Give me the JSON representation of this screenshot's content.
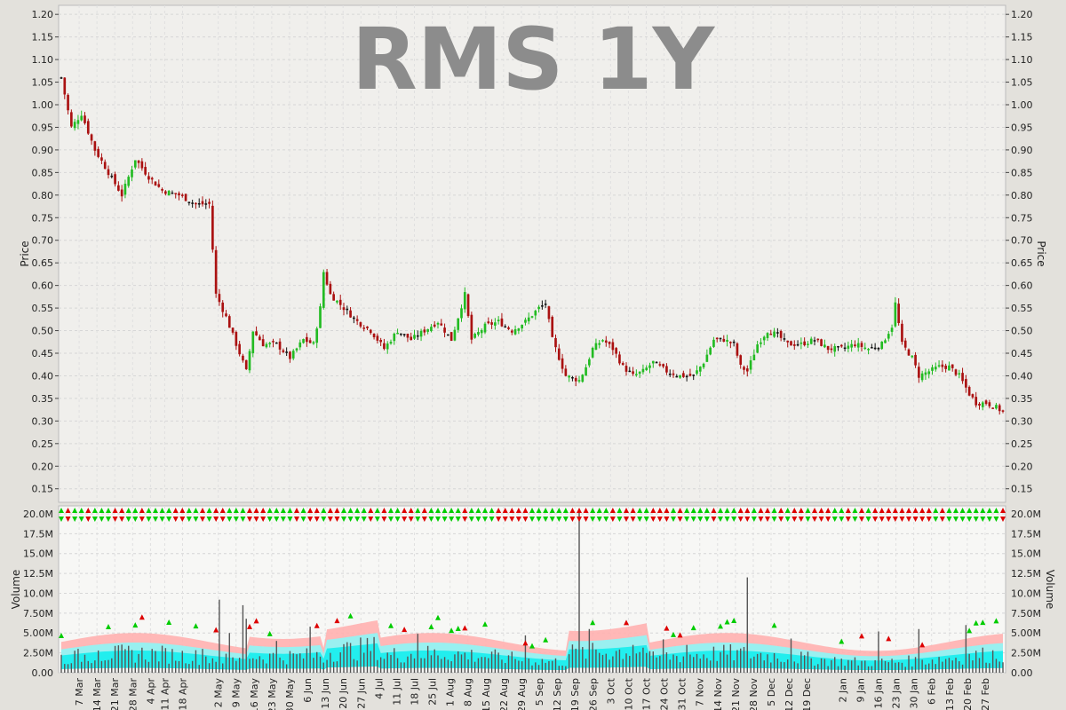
{
  "chart_data": [
    {
      "type": "candlestick",
      "title": "RMS 1Y",
      "ylabel": "Price",
      "ylim": [
        0.12,
        1.22
      ],
      "yticks": [
        "0.15",
        "0.20",
        "0.25",
        "0.30",
        "0.35",
        "0.40",
        "0.45",
        "0.50",
        "0.55",
        "0.60",
        "0.65",
        "0.70",
        "0.75",
        "0.80",
        "0.85",
        "0.90",
        "0.95",
        "1.00",
        "1.05",
        "1.10",
        "1.15",
        "1.20"
      ],
      "grid": true,
      "colors": {
        "up": "#22bb22",
        "down": "#aa1111",
        "neutral": "#111111",
        "background": "#f0efec"
      },
      "approx_close_path": [
        [
          0,
          1.06
        ],
        [
          3,
          0.95
        ],
        [
          6,
          0.98
        ],
        [
          10,
          0.9
        ],
        [
          14,
          0.85
        ],
        [
          18,
          0.8
        ],
        [
          22,
          0.88
        ],
        [
          26,
          0.84
        ],
        [
          30,
          0.81
        ],
        [
          35,
          0.8
        ],
        [
          40,
          0.78
        ],
        [
          44,
          0.78
        ],
        [
          46,
          0.58
        ],
        [
          49,
          0.53
        ],
        [
          53,
          0.45
        ],
        [
          55,
          0.41
        ],
        [
          57,
          0.5
        ],
        [
          60,
          0.47
        ],
        [
          64,
          0.47
        ],
        [
          68,
          0.44
        ],
        [
          72,
          0.48
        ],
        [
          75,
          0.47
        ],
        [
          77,
          0.55
        ],
        [
          78,
          0.63
        ],
        [
          80,
          0.58
        ],
        [
          84,
          0.55
        ],
        [
          88,
          0.52
        ],
        [
          92,
          0.5
        ],
        [
          96,
          0.46
        ],
        [
          100,
          0.5
        ],
        [
          104,
          0.48
        ],
        [
          108,
          0.5
        ],
        [
          112,
          0.52
        ],
        [
          116,
          0.48
        ],
        [
          118,
          0.53
        ],
        [
          120,
          0.58
        ],
        [
          122,
          0.48
        ],
        [
          126,
          0.51
        ],
        [
          130,
          0.52
        ],
        [
          134,
          0.5
        ],
        [
          138,
          0.52
        ],
        [
          142,
          0.55
        ],
        [
          144,
          0.56
        ],
        [
          146,
          0.48
        ],
        [
          148,
          0.44
        ],
        [
          150,
          0.4
        ],
        [
          154,
          0.39
        ],
        [
          156,
          0.42
        ],
        [
          158,
          0.46
        ],
        [
          161,
          0.48
        ],
        [
          164,
          0.46
        ],
        [
          167,
          0.42
        ],
        [
          170,
          0.4
        ],
        [
          173,
          0.41
        ],
        [
          176,
          0.43
        ],
        [
          180,
          0.41
        ],
        [
          184,
          0.4
        ],
        [
          188,
          0.4
        ],
        [
          191,
          0.43
        ],
        [
          194,
          0.48
        ],
        [
          197,
          0.48
        ],
        [
          200,
          0.47
        ],
        [
          202,
          0.42
        ],
        [
          204,
          0.41
        ],
        [
          207,
          0.47
        ],
        [
          210,
          0.5
        ],
        [
          213,
          0.49
        ],
        [
          216,
          0.47
        ],
        [
          220,
          0.47
        ],
        [
          224,
          0.48
        ],
        [
          228,
          0.46
        ],
        [
          232,
          0.46
        ],
        [
          236,
          0.47
        ],
        [
          240,
          0.46
        ],
        [
          244,
          0.47
        ],
        [
          247,
          0.51
        ],
        [
          248,
          0.56
        ],
        [
          250,
          0.47
        ],
        [
          253,
          0.44
        ],
        [
          255,
          0.4
        ],
        [
          258,
          0.41
        ],
        [
          261,
          0.42
        ],
        [
          264,
          0.42
        ],
        [
          267,
          0.4
        ],
        [
          270,
          0.36
        ],
        [
          272,
          0.34
        ],
        [
          275,
          0.34
        ],
        [
          278,
          0.33
        ],
        [
          280,
          0.32
        ]
      ],
      "total_bars": 281
    },
    {
      "type": "bar",
      "ylabel": "Volume",
      "ylim": [
        0,
        21000000
      ],
      "yticks": [
        "0.00",
        "2.50M",
        "5.00M",
        "7.50M",
        "10.0M",
        "12.5M",
        "15.0M",
        "17.5M",
        "20.0M"
      ],
      "xticks": [
        "7 Mar",
        "14 Mar",
        "21 Mar",
        "28 Mar",
        "4 Apr",
        "11 Apr",
        "18 Apr",
        "2 May",
        "9 May",
        "16 May",
        "23 May",
        "30 May",
        "6 Jun",
        "13 Jun",
        "20 Jun",
        "27 Jun",
        "4 Jul",
        "11 Jul",
        "18 Jul",
        "25 Jul",
        "1 Aug",
        "8 Aug",
        "15 Aug",
        "22 Aug",
        "29 Aug",
        "5 Sep",
        "12 Sep",
        "19 Sep",
        "26 Sep",
        "3 Oct",
        "10 Oct",
        "17 Oct",
        "24 Oct",
        "31 Oct",
        "7 Nov",
        "14 Nov",
        "21 Nov",
        "28 Nov",
        "5 Dec",
        "12 Dec",
        "19 Dec",
        "2 Jan",
        "9 Jan",
        "16 Jan",
        "23 Jan",
        "30 Jan",
        "6 Feb",
        "13 Feb",
        "20 Feb",
        "27 Feb"
      ],
      "xtick_index": [
        5,
        10,
        15,
        20,
        25,
        29,
        34,
        44,
        49,
        54,
        59,
        64,
        69,
        74,
        79,
        84,
        89,
        94,
        99,
        104,
        109,
        114,
        119,
        124,
        129,
        134,
        139,
        144,
        149,
        154,
        159,
        164,
        169,
        174,
        179,
        184,
        189,
        194,
        199,
        204,
        209,
        219,
        224,
        229,
        234,
        239,
        244,
        249,
        254,
        259
      ],
      "volume_spikes_m": [
        [
          3,
          1.2
        ],
        [
          10,
          2.8
        ],
        [
          40,
          3.0
        ],
        [
          44,
          9.2
        ],
        [
          47,
          5.0
        ],
        [
          51,
          8.5
        ],
        [
          52,
          6.8
        ],
        [
          60,
          4.0
        ],
        [
          70,
          5.8
        ],
        [
          100,
          4.9
        ],
        [
          125,
          2.2
        ],
        [
          130,
          4.7
        ],
        [
          145,
          20.4
        ],
        [
          148,
          5.5
        ],
        [
          160,
          3.5
        ],
        [
          169,
          4.2
        ],
        [
          175,
          3.5
        ],
        [
          192,
          12.0
        ],
        [
          205,
          4.3
        ],
        [
          229,
          5.2
        ],
        [
          240,
          5.5
        ],
        [
          254,
          6.0
        ]
      ],
      "colors": {
        "volume_bar": "#555555",
        "band_outer": "#ffb0b0",
        "band_mid": "#99f0f0",
        "band_inner": "#22eeee",
        "signal_up": "#00cc00",
        "signal_down": "#dd0000"
      }
    }
  ]
}
